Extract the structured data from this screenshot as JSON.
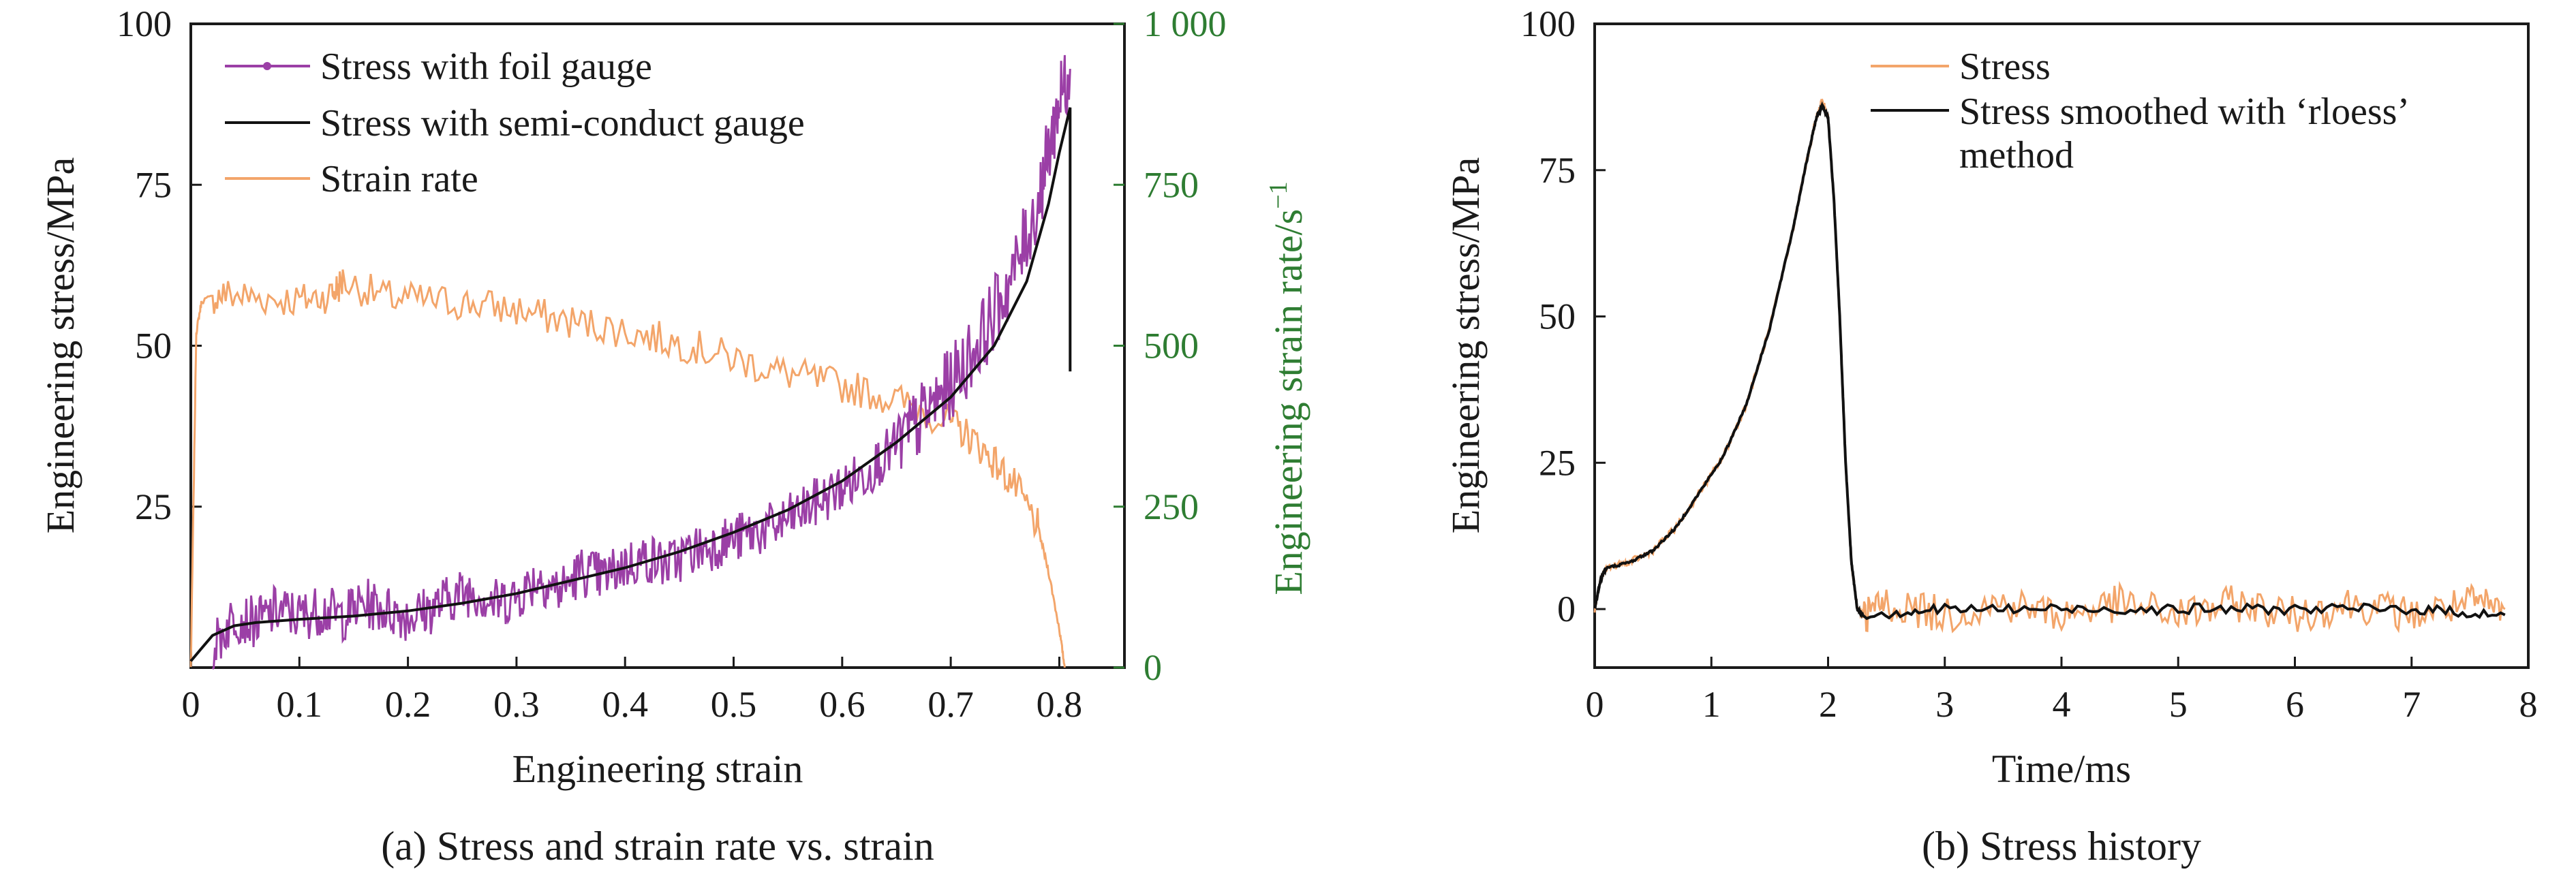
{
  "colors": {
    "foil": "#9b3fa6",
    "semi": "#111111",
    "strain_rate": "#f3a56a",
    "stress_b": "#f3a56a",
    "smoothed_b": "#111111",
    "secondary_axis": "#2e7d32"
  },
  "chart_data": [
    {
      "type": "line",
      "caption": "(a) Stress and strain rate vs. strain",
      "xlabel": "Engineering strain",
      "ylabel": "Engineering stress/MPa",
      "y2label": "Engineering strain rate/s",
      "y2label_sup": "−1",
      "xlim": [
        0,
        0.86
      ],
      "ylim": [
        0,
        100
      ],
      "y2lim": [
        0,
        1000
      ],
      "x_ticks": [
        "0",
        "0.1",
        "0.2",
        "0.3",
        "0.4",
        "0.5",
        "0.6",
        "0.7",
        "0.8"
      ],
      "y_ticks": [
        "25",
        "50",
        "75",
        "100"
      ],
      "y2_ticks": [
        "0",
        "250",
        "500",
        "750",
        "1 000"
      ],
      "legend_position": "top-left",
      "grid": false,
      "series": [
        {
          "name": "Stress with foil gauge",
          "axis": "left",
          "x": [
            0.02,
            0.04,
            0.06,
            0.08,
            0.1,
            0.12,
            0.14,
            0.16,
            0.18,
            0.2,
            0.22,
            0.24,
            0.26,
            0.28,
            0.3,
            0.32,
            0.34,
            0.36,
            0.38,
            0.4,
            0.42,
            0.44,
            0.46,
            0.48,
            0.5,
            0.52,
            0.54,
            0.56,
            0.58,
            0.6,
            0.62,
            0.64,
            0.66,
            0.68,
            0.7,
            0.72,
            0.74,
            0.76,
            0.78,
            0.79,
            0.8,
            0.81
          ],
          "y": [
            3,
            8,
            7,
            9,
            8,
            9,
            8,
            10,
            9,
            8,
            9,
            11,
            12,
            10,
            11,
            14,
            12,
            15,
            14,
            16,
            17,
            16,
            18,
            19,
            20,
            21,
            22,
            24,
            26,
            28,
            30,
            33,
            36,
            40,
            44,
            49,
            55,
            62,
            72,
            80,
            88,
            93
          ]
        },
        {
          "name": "Stress with semi-conduct gauge",
          "axis": "left",
          "x": [
            0.0,
            0.01,
            0.02,
            0.04,
            0.06,
            0.1,
            0.15,
            0.2,
            0.25,
            0.3,
            0.35,
            0.4,
            0.45,
            0.5,
            0.55,
            0.6,
            0.65,
            0.7,
            0.74,
            0.77,
            0.79,
            0.8,
            0.81,
            0.81
          ],
          "y": [
            1,
            3,
            5,
            6.5,
            7,
            7.5,
            8,
            8.8,
            10,
            11.5,
            13.5,
            15.5,
            18,
            21,
            24.5,
            29,
            35,
            42,
            50,
            60,
            72,
            80,
            87,
            46
          ]
        },
        {
          "name": "Strain rate",
          "axis": "right",
          "x": [
            0.0,
            0.005,
            0.01,
            0.03,
            0.06,
            0.1,
            0.13,
            0.14,
            0.18,
            0.22,
            0.26,
            0.3,
            0.34,
            0.38,
            0.42,
            0.46,
            0.5,
            0.54,
            0.58,
            0.62,
            0.66,
            0.7,
            0.72,
            0.74,
            0.76,
            0.78,
            0.79,
            0.8,
            0.805
          ],
          "y": [
            0,
            520,
            570,
            580,
            575,
            570,
            580,
            600,
            575,
            570,
            565,
            555,
            540,
            530,
            515,
            500,
            480,
            460,
            445,
            430,
            410,
            380,
            355,
            320,
            280,
            220,
            150,
            60,
            0
          ]
        }
      ]
    },
    {
      "type": "line",
      "caption": "(b) Stress history",
      "xlabel": "Time/ms",
      "ylabel": "Engineering stress/MPa",
      "xlim": [
        0,
        8
      ],
      "ylim": [
        -10,
        100
      ],
      "x_ticks": [
        "0",
        "1",
        "2",
        "3",
        "4",
        "5",
        "6",
        "7",
        "8"
      ],
      "y_ticks": [
        "0",
        "25",
        "50",
        "75",
        "100"
      ],
      "legend_position": "top-right",
      "grid": false,
      "series": [
        {
          "name": "Stress",
          "x": [
            0.0,
            0.05,
            0.1,
            0.3,
            0.5,
            0.7,
            0.9,
            1.1,
            1.3,
            1.5,
            1.7,
            1.8,
            1.9,
            1.95,
            2.0,
            2.05,
            2.1,
            2.15,
            2.2,
            2.25,
            2.3,
            2.5,
            3.0,
            3.5,
            4.0,
            4.5,
            5.0,
            5.5,
            6.0,
            6.5,
            7.0,
            7.5,
            7.8
          ],
          "y": [
            0,
            5,
            7,
            8,
            10,
            14,
            20,
            26,
            35,
            48,
            65,
            75,
            84,
            87,
            84,
            70,
            50,
            25,
            8,
            0,
            -1,
            1,
            -1,
            1,
            -1,
            1,
            -1,
            1,
            -1,
            1,
            -1,
            1,
            0
          ]
        },
        {
          "name": "Stress smoothed with ‘rloess’ method",
          "x": [
            0.0,
            0.05,
            0.1,
            0.3,
            0.5,
            0.7,
            0.9,
            1.1,
            1.3,
            1.5,
            1.7,
            1.8,
            1.9,
            1.95,
            2.0,
            2.05,
            2.1,
            2.15,
            2.2,
            2.25,
            2.3,
            3.0,
            4.0,
            5.0,
            6.0,
            7.0,
            7.8
          ],
          "y": [
            0,
            5,
            7,
            8,
            10,
            14,
            20,
            26,
            35,
            48,
            65,
            75,
            84,
            86,
            84,
            70,
            50,
            25,
            8,
            0,
            -1,
            0,
            0,
            0,
            0,
            0,
            -1
          ]
        }
      ]
    }
  ]
}
